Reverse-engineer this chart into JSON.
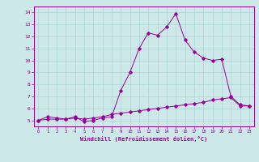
{
  "xlabel": "Windchill (Refroidissement éolien,°C)",
  "bg_color": "#cce8e8",
  "line_color": "#990099",
  "xlim": [
    -0.5,
    23.5
  ],
  "ylim": [
    4.5,
    14.5
  ],
  "yticks": [
    5,
    6,
    7,
    8,
    9,
    10,
    11,
    12,
    13,
    14
  ],
  "xticks": [
    0,
    1,
    2,
    3,
    4,
    5,
    6,
    7,
    8,
    9,
    10,
    11,
    12,
    13,
    14,
    15,
    16,
    17,
    18,
    19,
    20,
    21,
    22,
    23
  ],
  "series1_x": [
    0,
    1,
    2,
    3,
    4,
    5,
    6,
    7,
    8,
    9,
    10,
    11,
    12,
    13,
    14,
    15,
    16,
    17,
    18,
    19,
    20,
    21,
    22,
    23
  ],
  "series1_y": [
    5.0,
    5.3,
    5.2,
    5.1,
    5.3,
    4.9,
    5.0,
    5.2,
    5.3,
    7.5,
    9.0,
    11.0,
    12.3,
    12.1,
    12.8,
    13.9,
    11.7,
    10.7,
    10.2,
    10.0,
    10.1,
    7.0,
    6.3,
    6.2
  ],
  "series2_x": [
    0,
    1,
    2,
    3,
    4,
    5,
    6,
    7,
    8,
    9,
    10,
    11,
    12,
    13,
    14,
    15,
    16,
    17,
    18,
    19,
    20,
    21,
    22,
    23
  ],
  "series2_y": [
    5.0,
    5.1,
    5.1,
    5.1,
    5.2,
    5.1,
    5.2,
    5.3,
    5.5,
    5.6,
    5.7,
    5.8,
    5.9,
    6.0,
    6.1,
    6.2,
    6.3,
    6.4,
    6.5,
    6.7,
    6.8,
    6.9,
    6.2,
    6.2
  ]
}
